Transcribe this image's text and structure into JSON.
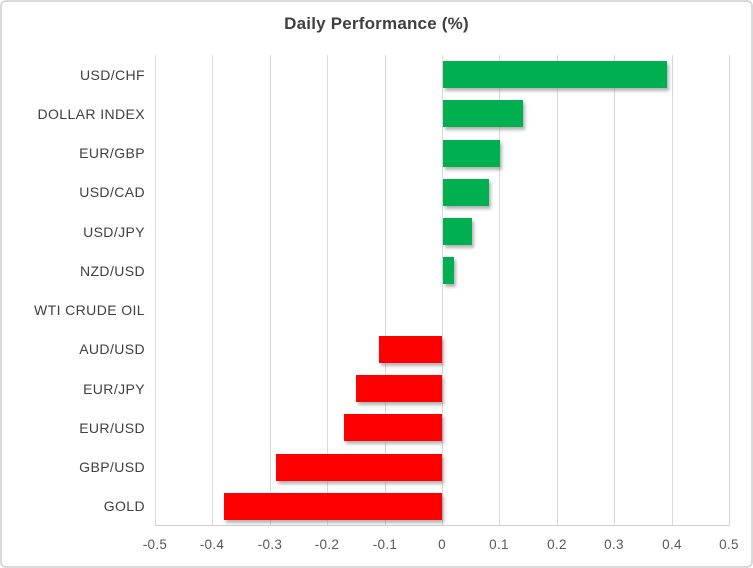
{
  "chart_data": {
    "type": "bar",
    "orientation": "horizontal",
    "title": "Daily Performance (%)",
    "categories": [
      "USD/CHF",
      "DOLLAR INDEX",
      "EUR/GBP",
      "USD/CAD",
      "USD/JPY",
      "NZD/USD",
      "WTI CRUDE OIL",
      "AUD/USD",
      "EUR/JPY",
      "EUR/USD",
      "GBP/USD",
      "GOLD"
    ],
    "values": [
      0.39,
      0.14,
      0.1,
      0.08,
      0.05,
      0.02,
      0.0,
      -0.11,
      -0.15,
      -0.17,
      -0.29,
      -0.38
    ],
    "x_tick_labels": [
      "-0.5",
      "-0.4",
      "-0.3",
      "-0.2",
      "-0.1",
      "0",
      "0.1",
      "0.2",
      "0.3",
      "0.4",
      "0.5"
    ],
    "x_tick_values": [
      -0.5,
      -0.4,
      -0.3,
      -0.2,
      -0.1,
      0,
      0.1,
      0.2,
      0.3,
      0.4,
      0.5
    ],
    "xlim": [
      -0.5,
      0.5
    ],
    "grid": "vertical-only",
    "legend": "none",
    "value_labels": "none",
    "colors": {
      "positive_bar": "#00B050",
      "negative_bar": "#FF0000",
      "gridline": "#D9D9D9",
      "axis_line": "#D0D0D0",
      "title_text": "#404040",
      "category_text": "#404040",
      "tick_text": "#595959",
      "frame_border": "#D9D9D9",
      "background": "#FFFFFF"
    }
  }
}
